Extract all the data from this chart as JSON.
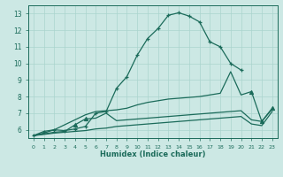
{
  "xlabel": "Humidex (Indice chaleur)",
  "bg_color": "#cce8e4",
  "grid_color": "#aad4ce",
  "line_color": "#1b6b5a",
  "xlim_min": -0.5,
  "xlim_max": 23.5,
  "ylim_min": 5.5,
  "ylim_max": 13.5,
  "xticks": [
    0,
    1,
    2,
    3,
    4,
    5,
    6,
    7,
    8,
    9,
    10,
    11,
    12,
    13,
    14,
    15,
    16,
    17,
    18,
    19,
    20,
    21,
    22,
    23
  ],
  "yticks": [
    6,
    7,
    8,
    9,
    10,
    11,
    12,
    13
  ],
  "curve_main_x": [
    0,
    1,
    2,
    3,
    4,
    5,
    6,
    7,
    8,
    9,
    10,
    11,
    12,
    13,
    14,
    15,
    16,
    17,
    18,
    19,
    20
  ],
  "curve_main_y": [
    5.65,
    5.9,
    6.0,
    5.95,
    6.05,
    6.2,
    7.0,
    7.1,
    8.5,
    9.2,
    10.5,
    11.5,
    12.1,
    12.9,
    13.05,
    12.85,
    12.5,
    11.3,
    11.0,
    10.0,
    9.6
  ],
  "curve2_x": [
    0,
    1,
    2,
    3,
    4,
    5,
    6,
    7,
    8,
    9,
    10,
    11,
    12,
    13,
    14,
    15,
    16,
    17,
    18,
    19,
    20,
    21,
    22,
    23
  ],
  "curve2_y": [
    5.65,
    5.8,
    6.0,
    6.3,
    6.6,
    6.9,
    7.1,
    7.15,
    7.2,
    7.3,
    7.5,
    7.65,
    7.75,
    7.85,
    7.9,
    7.95,
    8.0,
    8.1,
    8.2,
    9.5,
    8.1,
    8.3,
    6.5,
    7.3
  ],
  "curve3_x": [
    0,
    1,
    2,
    3,
    4,
    5,
    6,
    7,
    8,
    9,
    10,
    11,
    12,
    13,
    14,
    15,
    16,
    17,
    18,
    19,
    20,
    21,
    22,
    23
  ],
  "curve3_y": [
    5.65,
    5.75,
    5.85,
    5.9,
    6.3,
    6.65,
    6.7,
    7.0,
    6.55,
    6.6,
    6.65,
    6.7,
    6.75,
    6.8,
    6.85,
    6.9,
    6.95,
    7.0,
    7.05,
    7.1,
    7.15,
    6.6,
    6.5,
    7.25
  ],
  "curve4_x": [
    0,
    1,
    2,
    3,
    4,
    5,
    6,
    7,
    8,
    9,
    10,
    11,
    12,
    13,
    14,
    15,
    16,
    17,
    18,
    19,
    20,
    21,
    22,
    23
  ],
  "curve4_y": [
    5.65,
    5.72,
    5.8,
    5.85,
    5.9,
    5.95,
    6.05,
    6.1,
    6.2,
    6.25,
    6.3,
    6.35,
    6.4,
    6.45,
    6.5,
    6.55,
    6.6,
    6.65,
    6.7,
    6.75,
    6.8,
    6.35,
    6.25,
    7.1
  ]
}
